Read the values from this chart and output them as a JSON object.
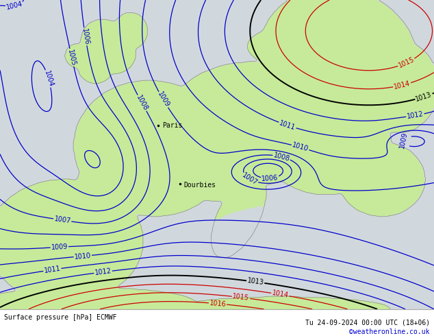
{
  "title_left": "Surface pressure [hPa] ECMWF",
  "title_right": "Tu 24-09-2024 00:00 UTC (18+06)",
  "credit": "©weatheronline.co.uk",
  "credit_color": "#0000cc",
  "background_color": "#ffffff",
  "land_green": [
    0.78,
    0.92,
    0.6
  ],
  "land_gray": [
    0.88,
    0.88,
    0.88
  ],
  "sea_gray": [
    0.82,
    0.85,
    0.87
  ],
  "blue_contour_color": "#0000cc",
  "red_contour_color": "#cc0000",
  "black_contour_color": "#000000",
  "fig_width": 6.34,
  "fig_height": 4.9,
  "dpi": 100,
  "font_size_labels": 7,
  "font_size_bottom": 7,
  "font_family": "monospace"
}
